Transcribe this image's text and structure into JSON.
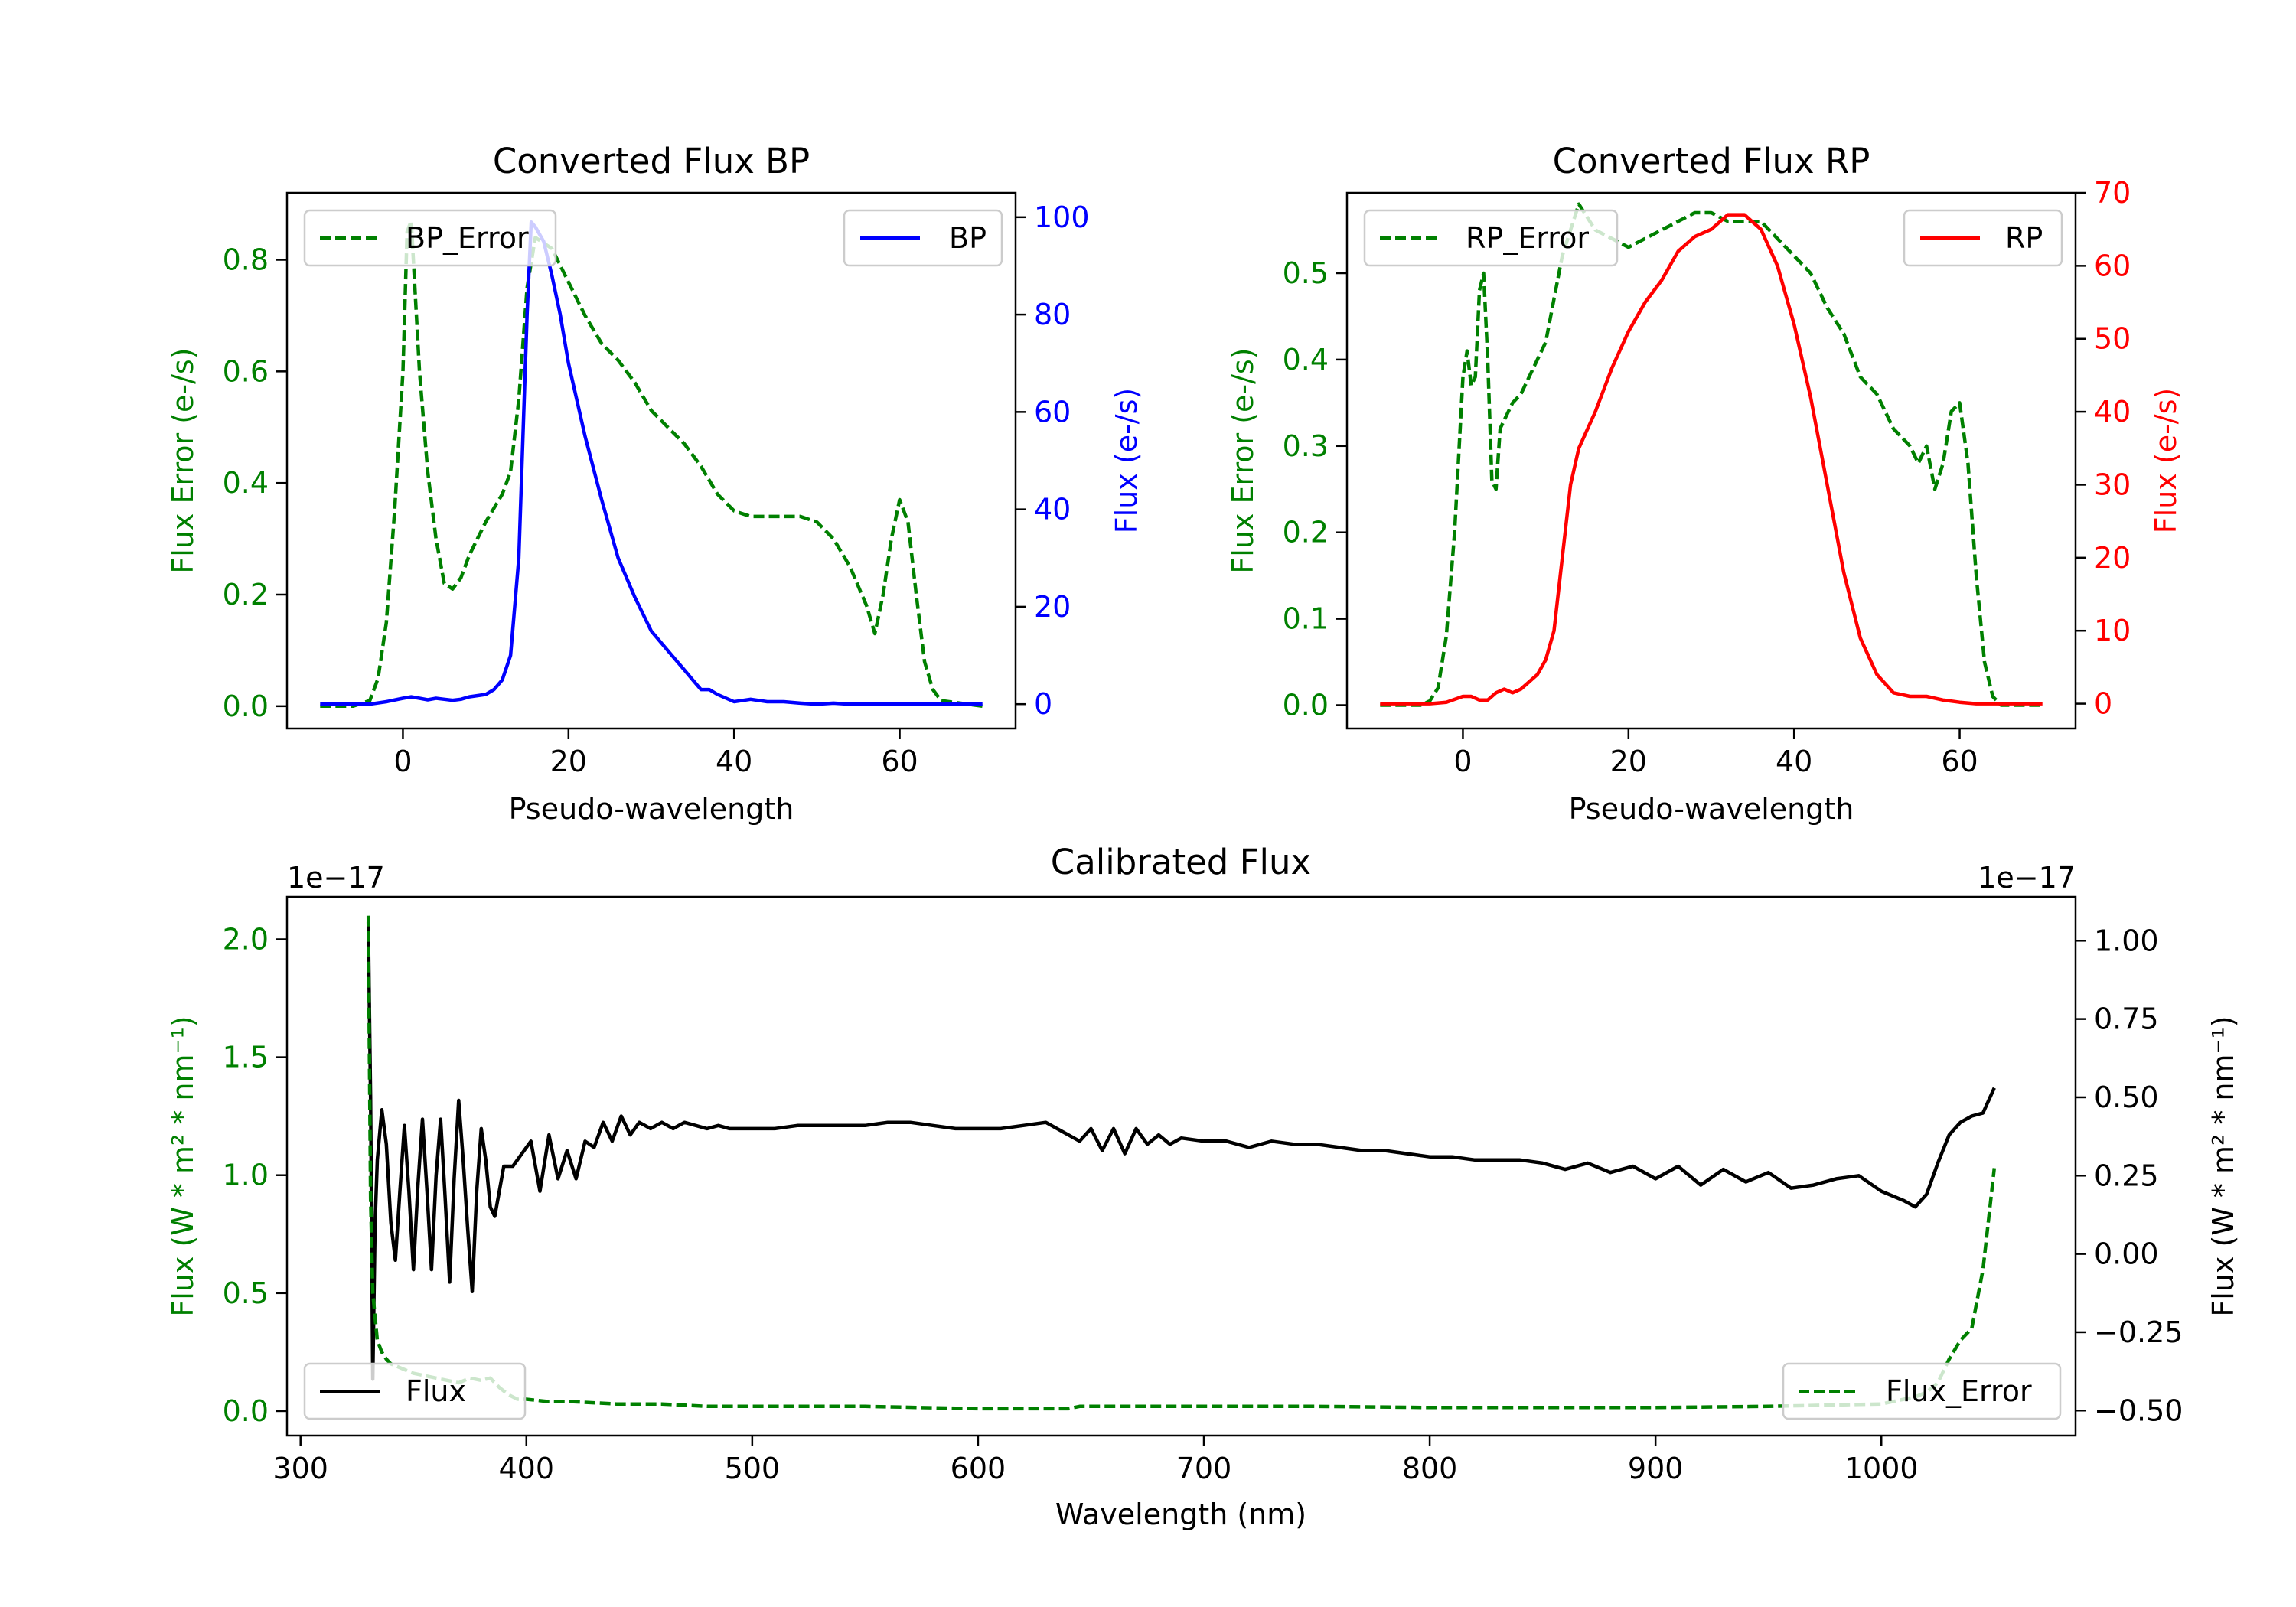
{
  "colors": {
    "error": "#008000",
    "bp": "#0000ff",
    "rp": "#ff0000",
    "flux": "#000000",
    "axis": "#000000"
  },
  "chart_data": [
    {
      "id": "bp",
      "type": "line",
      "title": "Converted Flux BP",
      "xlabel": "Pseudo-wavelength",
      "ylabel_left": "Flux Error (e-/s)",
      "ylabel_right": "Flux (e-/s)",
      "xlim": [
        -14,
        74
      ],
      "ylim_left": [
        -0.04,
        0.92
      ],
      "ylim_right": [
        -5,
        105
      ],
      "xticks": [
        {
          "v": 0,
          "label": "0"
        },
        {
          "v": 20,
          "label": "20"
        },
        {
          "v": 40,
          "label": "40"
        },
        {
          "v": 60,
          "label": "60"
        }
      ],
      "yticks_left": [
        {
          "v": 0,
          "label": "0.0"
        },
        {
          "v": 0.2,
          "label": "0.2"
        },
        {
          "v": 0.4,
          "label": "0.4"
        },
        {
          "v": 0.6,
          "label": "0.6"
        },
        {
          "v": 0.8,
          "label": "0.8"
        }
      ],
      "yticks_right": [
        {
          "v": 0,
          "label": "0"
        },
        {
          "v": 20,
          "label": "20"
        },
        {
          "v": 40,
          "label": "40"
        },
        {
          "v": 60,
          "label": "60"
        },
        {
          "v": 80,
          "label": "80"
        },
        {
          "v": 100,
          "label": "100"
        }
      ],
      "legend_left": {
        "label": "BP_Error",
        "position": "upper-left"
      },
      "legend_right": {
        "label": "BP",
        "position": "upper-right"
      },
      "series": [
        {
          "name": "BP_Error",
          "axis": "left",
          "style": "dashed",
          "color": "#008000",
          "x": [
            -10,
            -6,
            -4,
            -3,
            -2,
            -1,
            0,
            0.5,
            1,
            2,
            3,
            4,
            5,
            6,
            7,
            8,
            10,
            12,
            13,
            14,
            15,
            16,
            18,
            20,
            22,
            24,
            26,
            28,
            30,
            32,
            34,
            36,
            38,
            40,
            42,
            44,
            46,
            48,
            50,
            52,
            54,
            56,
            57,
            58,
            59,
            60,
            61,
            62,
            63,
            64,
            65,
            70
          ],
          "y": [
            0,
            0,
            0.01,
            0.05,
            0.15,
            0.35,
            0.6,
            0.85,
            0.87,
            0.6,
            0.42,
            0.3,
            0.22,
            0.21,
            0.23,
            0.27,
            0.33,
            0.38,
            0.42,
            0.55,
            0.75,
            0.84,
            0.82,
            0.76,
            0.7,
            0.65,
            0.62,
            0.58,
            0.53,
            0.5,
            0.47,
            0.43,
            0.38,
            0.35,
            0.34,
            0.34,
            0.34,
            0.34,
            0.33,
            0.3,
            0.25,
            0.18,
            0.13,
            0.2,
            0.3,
            0.37,
            0.33,
            0.2,
            0.08,
            0.03,
            0.01,
            0
          ]
        },
        {
          "name": "BP",
          "axis": "right",
          "style": "solid",
          "color": "#0000ff",
          "x": [
            -10,
            -4,
            -2,
            0,
            1,
            2,
            3,
            4,
            5,
            6,
            7,
            8,
            10,
            11,
            12,
            13,
            14,
            15,
            15.5,
            16,
            17,
            18,
            19,
            20,
            22,
            24,
            26,
            28,
            30,
            32,
            34,
            35,
            36,
            37,
            38,
            40,
            42,
            44,
            46,
            48,
            50,
            52,
            54,
            56,
            58,
            60,
            62,
            64,
            66,
            68,
            70
          ],
          "y": [
            0,
            0,
            0.5,
            1.2,
            1.5,
            1.2,
            0.9,
            1.2,
            1.0,
            0.8,
            1.0,
            1.5,
            2,
            3,
            5,
            10,
            30,
            80,
            99,
            98,
            95,
            88,
            80,
            70,
            55,
            42,
            30,
            22,
            15,
            11,
            7,
            5,
            3,
            3,
            2,
            0.5,
            1,
            0.5,
            0.5,
            0.2,
            0,
            0.2,
            0,
            0,
            0,
            0,
            0,
            0,
            0,
            0,
            0
          ]
        }
      ]
    },
    {
      "id": "rp",
      "type": "line",
      "title": "Converted Flux RP",
      "xlabel": "Pseudo-wavelength",
      "ylabel_left": "Flux Error (e-/s)",
      "ylabel_right": "Flux (e-/s)",
      "xlim": [
        -14,
        74
      ],
      "ylim_left": [
        -0.027,
        0.593
      ],
      "ylim_right": [
        -3.4,
        70
      ],
      "xticks": [
        {
          "v": 0,
          "label": "0"
        },
        {
          "v": 20,
          "label": "20"
        },
        {
          "v": 40,
          "label": "40"
        },
        {
          "v": 60,
          "label": "60"
        }
      ],
      "yticks_left": [
        {
          "v": 0,
          "label": "0.0"
        },
        {
          "v": 0.1,
          "label": "0.1"
        },
        {
          "v": 0.2,
          "label": "0.2"
        },
        {
          "v": 0.3,
          "label": "0.3"
        },
        {
          "v": 0.4,
          "label": "0.4"
        },
        {
          "v": 0.5,
          "label": "0.5"
        }
      ],
      "yticks_right": [
        {
          "v": 0,
          "label": "0"
        },
        {
          "v": 10,
          "label": "10"
        },
        {
          "v": 20,
          "label": "20"
        },
        {
          "v": 30,
          "label": "30"
        },
        {
          "v": 40,
          "label": "40"
        },
        {
          "v": 50,
          "label": "50"
        },
        {
          "v": 60,
          "label": "60"
        },
        {
          "v": 70,
          "label": "70"
        }
      ],
      "legend_left": {
        "label": "RP_Error",
        "position": "upper-left"
      },
      "legend_right": {
        "label": "RP",
        "position": "upper-right"
      },
      "series": [
        {
          "name": "RP_Error",
          "axis": "left",
          "style": "dashed",
          "color": "#008000",
          "x": [
            -10,
            -5,
            -4,
            -3,
            -2,
            -1,
            0,
            0.5,
            1,
            1.5,
            2,
            2.5,
            3,
            3.5,
            4,
            4.5,
            5,
            6,
            7,
            8,
            9,
            10,
            12,
            14,
            16,
            18,
            20,
            22,
            24,
            26,
            28,
            30,
            32,
            34,
            36,
            38,
            40,
            42,
            44,
            46,
            48,
            50,
            52,
            54,
            55,
            56,
            57,
            58,
            59,
            60,
            61,
            62,
            63,
            64,
            65,
            70
          ],
          "y": [
            0,
            0,
            0.005,
            0.02,
            0.08,
            0.2,
            0.38,
            0.41,
            0.37,
            0.38,
            0.48,
            0.5,
            0.4,
            0.26,
            0.25,
            0.32,
            0.33,
            0.35,
            0.36,
            0.38,
            0.4,
            0.42,
            0.52,
            0.58,
            0.55,
            0.54,
            0.53,
            0.54,
            0.55,
            0.56,
            0.57,
            0.57,
            0.56,
            0.56,
            0.56,
            0.54,
            0.52,
            0.5,
            0.46,
            0.43,
            0.38,
            0.36,
            0.32,
            0.3,
            0.28,
            0.3,
            0.25,
            0.28,
            0.34,
            0.35,
            0.28,
            0.15,
            0.05,
            0.01,
            0,
            0
          ]
        },
        {
          "name": "RP",
          "axis": "right",
          "style": "solid",
          "color": "#ff0000",
          "x": [
            -10,
            -4,
            -2,
            0,
            1,
            2,
            3,
            4,
            5,
            6,
            7,
            8,
            9,
            10,
            11,
            12,
            13,
            14,
            16,
            18,
            20,
            22,
            24,
            26,
            28,
            30,
            32,
            34,
            36,
            38,
            40,
            42,
            44,
            46,
            48,
            50,
            52,
            54,
            56,
            58,
            60,
            62,
            64,
            66,
            68,
            70
          ],
          "y": [
            0,
            0,
            0.2,
            1,
            1,
            0.5,
            0.5,
            1.5,
            2,
            1.5,
            2,
            3,
            4,
            6,
            10,
            20,
            30,
            35,
            40,
            46,
            51,
            55,
            58,
            62,
            64,
            65,
            67,
            67,
            65,
            60,
            52,
            42,
            30,
            18,
            9,
            4,
            1.5,
            1,
            1,
            0.5,
            0.2,
            0,
            0,
            0,
            0,
            0
          ]
        }
      ]
    },
    {
      "id": "cal",
      "type": "line",
      "title": "Calibrated Flux",
      "xlabel": "Wavelength (nm)",
      "ylabel_left": "Flux (W * m² * nm⁻¹)",
      "ylabel_right": "Flux (W * m² * nm⁻¹)",
      "offset_left": "1e−17",
      "offset_right": "1e−17",
      "xlim": [
        294,
        1086
      ],
      "ylim_left": [
        -0.104,
        2.18
      ],
      "ylim_right": [
        -0.58,
        1.14
      ],
      "xticks": [
        {
          "v": 300,
          "label": "300"
        },
        {
          "v": 400,
          "label": "400"
        },
        {
          "v": 500,
          "label": "500"
        },
        {
          "v": 600,
          "label": "600"
        },
        {
          "v": 700,
          "label": "700"
        },
        {
          "v": 800,
          "label": "800"
        },
        {
          "v": 900,
          "label": "900"
        },
        {
          "v": 1000,
          "label": "1000"
        }
      ],
      "yticks_left": [
        {
          "v": 0,
          "label": "0.0"
        },
        {
          "v": 0.5,
          "label": "0.5"
        },
        {
          "v": 1.0,
          "label": "1.0"
        },
        {
          "v": 1.5,
          "label": "1.5"
        },
        {
          "v": 2.0,
          "label": "2.0"
        }
      ],
      "yticks_right": [
        {
          "v": -0.5,
          "label": "−0.50"
        },
        {
          "v": -0.25,
          "label": "−0.25"
        },
        {
          "v": 0,
          "label": "0.00"
        },
        {
          "v": 0.25,
          "label": "0.25"
        },
        {
          "v": 0.5,
          "label": "0.50"
        },
        {
          "v": 0.75,
          "label": "0.75"
        },
        {
          "v": 1.0,
          "label": "1.00"
        }
      ],
      "legend_left": {
        "label": "Flux",
        "position": "lower-left"
      },
      "legend_right": {
        "label": "Flux_Error",
        "position": "lower-right"
      },
      "series": [
        {
          "name": "Flux",
          "axis": "right",
          "style": "solid",
          "color": "#000000",
          "x": [
            330,
            331,
            332,
            333,
            334,
            336,
            338,
            340,
            342,
            344,
            346,
            348,
            350,
            352,
            354,
            356,
            358,
            360,
            362,
            364,
            366,
            368,
            370,
            372,
            374,
            376,
            378,
            380,
            382,
            384,
            386,
            388,
            390,
            394,
            398,
            402,
            406,
            410,
            414,
            418,
            422,
            426,
            430,
            434,
            438,
            442,
            446,
            450,
            455,
            460,
            465,
            470,
            475,
            480,
            485,
            490,
            495,
            500,
            510,
            520,
            530,
            540,
            550,
            560,
            570,
            580,
            590,
            600,
            610,
            620,
            630,
            640,
            645,
            650,
            655,
            660,
            665,
            670,
            675,
            680,
            685,
            690,
            700,
            710,
            720,
            730,
            740,
            750,
            760,
            770,
            780,
            790,
            800,
            810,
            820,
            830,
            840,
            850,
            860,
            870,
            880,
            890,
            900,
            910,
            920,
            930,
            940,
            950,
            960,
            970,
            980,
            990,
            1000,
            1010,
            1015,
            1020,
            1025,
            1030,
            1035,
            1040,
            1045,
            1050
          ],
          "y": [
            1.06,
            0.5,
            -0.4,
            0.1,
            0.3,
            0.46,
            0.35,
            0.1,
            -0.02,
            0.2,
            0.41,
            0.2,
            -0.05,
            0.22,
            0.43,
            0.2,
            -0.05,
            0.25,
            0.43,
            0.18,
            -0.09,
            0.24,
            0.49,
            0.3,
            0.08,
            -0.12,
            0.2,
            0.4,
            0.3,
            0.15,
            0.12,
            0.2,
            0.28,
            0.28,
            0.32,
            0.36,
            0.2,
            0.38,
            0.24,
            0.33,
            0.24,
            0.36,
            0.34,
            0.42,
            0.36,
            0.44,
            0.38,
            0.42,
            0.4,
            0.42,
            0.4,
            0.42,
            0.41,
            0.4,
            0.41,
            0.4,
            0.4,
            0.4,
            0.4,
            0.41,
            0.41,
            0.41,
            0.41,
            0.42,
            0.42,
            0.41,
            0.4,
            0.4,
            0.4,
            0.41,
            0.42,
            0.38,
            0.36,
            0.4,
            0.33,
            0.4,
            0.32,
            0.4,
            0.35,
            0.38,
            0.35,
            0.37,
            0.36,
            0.36,
            0.34,
            0.36,
            0.35,
            0.35,
            0.34,
            0.33,
            0.33,
            0.32,
            0.31,
            0.31,
            0.3,
            0.3,
            0.3,
            0.29,
            0.27,
            0.29,
            0.26,
            0.28,
            0.24,
            0.28,
            0.22,
            0.27,
            0.23,
            0.26,
            0.21,
            0.22,
            0.24,
            0.25,
            0.2,
            0.17,
            0.15,
            0.19,
            0.29,
            0.38,
            0.42,
            0.44,
            0.45,
            0.53
          ]
        },
        {
          "name": "Flux_Error",
          "axis": "left",
          "style": "dashed",
          "color": "#008000",
          "x": [
            330,
            331,
            332,
            334,
            336,
            338,
            340,
            345,
            350,
            360,
            370,
            375,
            380,
            384,
            388,
            392,
            396,
            400,
            410,
            420,
            440,
            460,
            480,
            500,
            550,
            600,
            620,
            635,
            640,
            645,
            650,
            700,
            750,
            800,
            850,
            900,
            950,
            1000,
            1005,
            1010,
            1015,
            1020,
            1025,
            1030,
            1035,
            1040,
            1045,
            1050
          ],
          "y": [
            2.1,
            0.9,
            0.5,
            0.3,
            0.25,
            0.22,
            0.2,
            0.18,
            0.16,
            0.14,
            0.12,
            0.14,
            0.13,
            0.14,
            0.1,
            0.07,
            0.05,
            0.05,
            0.04,
            0.04,
            0.03,
            0.03,
            0.02,
            0.02,
            0.02,
            0.01,
            0.01,
            0.01,
            0.01,
            0.02,
            0.02,
            0.02,
            0.02,
            0.015,
            0.015,
            0.015,
            0.02,
            0.03,
            0.04,
            0.05,
            0.06,
            0.08,
            0.12,
            0.22,
            0.3,
            0.35,
            0.6,
            1.03
          ]
        }
      ]
    }
  ]
}
